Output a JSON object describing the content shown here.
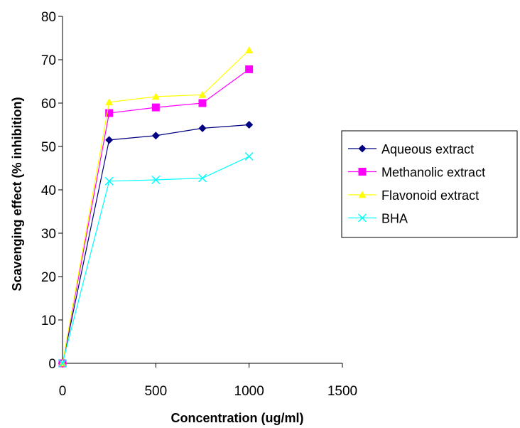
{
  "chart_data": {
    "type": "line",
    "title": "",
    "xlabel": "Concentration (ug/ml)",
    "ylabel": "Scavenging effect (% inhibition)",
    "xlim": [
      0,
      1500
    ],
    "ylim": [
      0,
      80
    ],
    "xticks": [
      0,
      500,
      1000,
      1500
    ],
    "yticks": [
      0,
      10,
      20,
      30,
      40,
      50,
      60,
      70,
      80
    ],
    "grid": false,
    "legend_position": "right",
    "x": [
      0,
      250,
      500,
      750,
      1000
    ],
    "series": [
      {
        "name": "Aqueous extract",
        "values": [
          0,
          51.5,
          52.5,
          54.2,
          55.0
        ],
        "color": "#000080",
        "marker": "diamond"
      },
      {
        "name": "Methanolic extract",
        "values": [
          0,
          57.7,
          59.0,
          60.0,
          67.8
        ],
        "color": "#FF00FF",
        "marker": "square"
      },
      {
        "name": "Flavonoid extract",
        "values": [
          0,
          60.2,
          61.5,
          61.9,
          72.2
        ],
        "color": "#FFFF00",
        "marker": "triangle"
      },
      {
        "name": "BHA",
        "values": [
          0,
          42.0,
          42.3,
          42.7,
          47.7
        ],
        "color": "#00FFFF",
        "marker": "x"
      }
    ]
  }
}
